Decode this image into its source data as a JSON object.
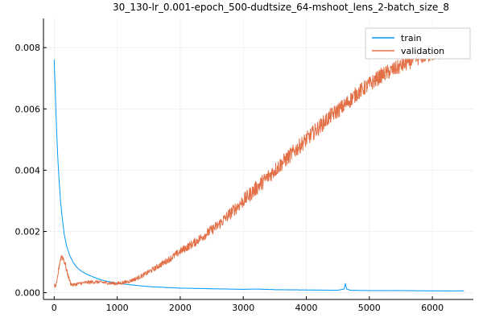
{
  "chart_data": {
    "type": "line",
    "title": "30_130-lr_0.001-epoch_500-dudtsize_64-mshoot_lens_2-batch_size_8",
    "xlabel": "",
    "ylabel": "",
    "xlim": [
      -170,
      6650
    ],
    "ylim": [
      -0.00022,
      0.00895
    ],
    "x_ticks": [
      0,
      1000,
      2000,
      3000,
      4000,
      5000,
      6000
    ],
    "x_tick_labels": [
      "0",
      "1000",
      "2000",
      "3000",
      "4000",
      "5000",
      "6000"
    ],
    "y_ticks": [
      0.0,
      0.002,
      0.004,
      0.006,
      0.008
    ],
    "y_tick_labels": [
      "0.000",
      "0.002",
      "0.004",
      "0.006",
      "0.008"
    ],
    "grid": true,
    "legend": "top-right",
    "series": [
      {
        "name": "train",
        "color": "#009AFA",
        "x": [
          0,
          20,
          40,
          60,
          80,
          100,
          130,
          160,
          200,
          250,
          300,
          350,
          400,
          450,
          500,
          600,
          700,
          800,
          900,
          1000,
          1200,
          1500,
          1800,
          2000,
          2500,
          3000,
          3200,
          3500,
          4000,
          4500,
          4600,
          4620,
          4640,
          4700,
          5000,
          5500,
          6000,
          6500
        ],
        "y": [
          0.0076,
          0.0064,
          0.0052,
          0.0043,
          0.0036,
          0.003,
          0.0024,
          0.0019,
          0.0015,
          0.0012,
          0.001,
          0.00085,
          0.00075,
          0.00068,
          0.00062,
          0.00053,
          0.00045,
          0.00039,
          0.00035,
          0.00031,
          0.00026,
          0.0002,
          0.00017,
          0.00015,
          0.00013,
          0.00011,
          0.00012,
          0.0001,
          9e-05,
          8e-05,
          0.00012,
          0.0003,
          0.00012,
          8e-05,
          7e-05,
          7e-05,
          6e-05,
          6e-05
        ],
        "noise": 2e-05
      },
      {
        "name": "validation",
        "color": "#E26F46",
        "x": [
          0,
          20,
          40,
          60,
          80,
          100,
          120,
          150,
          180,
          200,
          230,
          260,
          300,
          350,
          400,
          500,
          600,
          700,
          800,
          900,
          1000,
          1100,
          1200,
          1300,
          1400,
          1500,
          1600,
          1700,
          1800,
          1900,
          2000,
          2200,
          2400,
          2600,
          2800,
          3000,
          3200,
          3400,
          3600,
          3800,
          4000,
          4200,
          4400,
          4600,
          4800,
          5000,
          5200,
          5400,
          5600,
          5800,
          6000,
          6200,
          6400,
          6500
        ],
        "y": [
          0.00025,
          0.0002,
          0.0003,
          0.0006,
          0.0009,
          0.0011,
          0.0012,
          0.0011,
          0.0009,
          0.0007,
          0.0005,
          0.0003,
          0.00025,
          0.00028,
          0.0003,
          0.00033,
          0.00035,
          0.00035,
          0.00033,
          0.00031,
          0.0003,
          0.00033,
          0.00038,
          0.00046,
          0.00056,
          0.00068,
          0.0008,
          0.00093,
          0.00106,
          0.0012,
          0.00135,
          0.0016,
          0.0019,
          0.0022,
          0.0026,
          0.003,
          0.0034,
          0.0038,
          0.0042,
          0.0046,
          0.005,
          0.0054,
          0.0058,
          0.0061,
          0.0065,
          0.0068,
          0.0071,
          0.0073,
          0.0075,
          0.0077,
          0.0078,
          0.0079,
          0.008,
          0.0081
        ],
        "noise": 0.00025
      }
    ]
  }
}
